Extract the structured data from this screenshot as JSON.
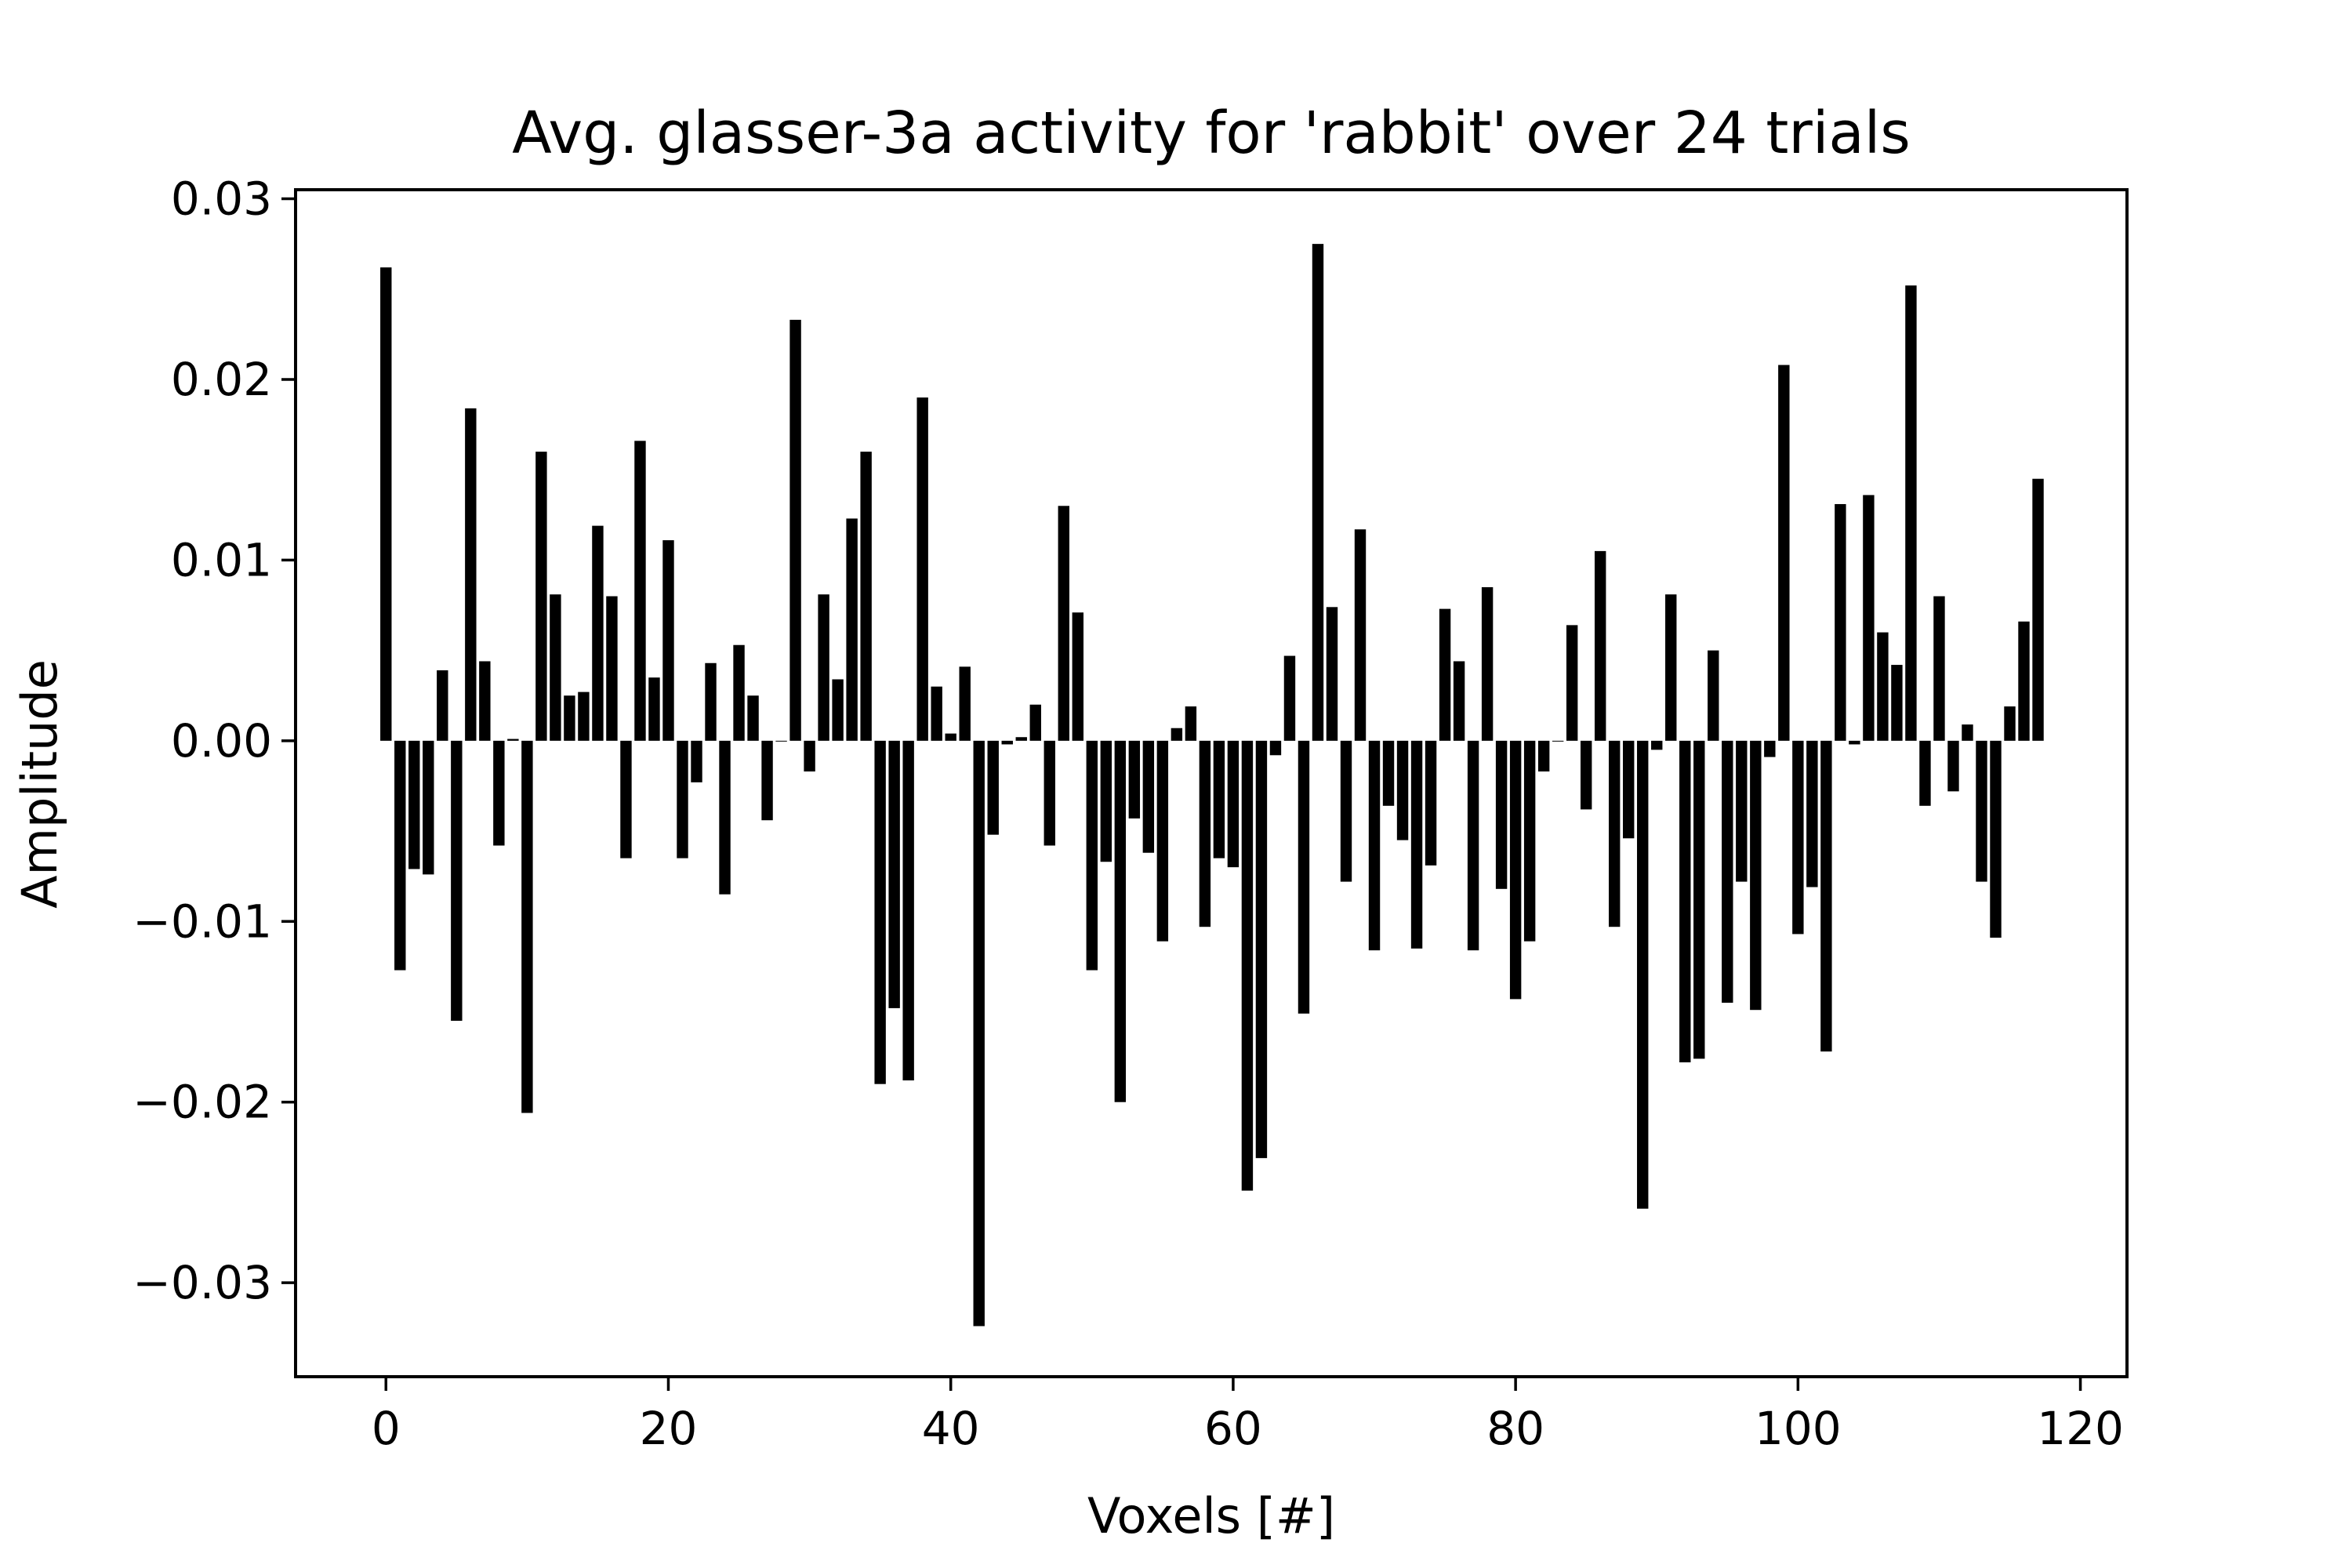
{
  "chart_data": {
    "type": "bar",
    "title": "Avg. glasser-3a activity for 'rabbit' over 24 trials",
    "xlabel": "Voxels [#]",
    "ylabel": "Amplitude",
    "xlim": [
      -6.4,
      123.3
    ],
    "ylim": [
      -0.0352,
      0.0305
    ],
    "xticks": [
      0,
      20,
      40,
      60,
      80,
      100,
      120
    ],
    "xtick_labels": [
      "0",
      "20",
      "40",
      "60",
      "80",
      "100",
      "120"
    ],
    "yticks": [
      -0.03,
      -0.02,
      -0.01,
      0.0,
      0.01,
      0.02,
      0.03
    ],
    "ytick_labels": [
      "−0.03",
      "−0.02",
      "−0.01",
      "0.00",
      "0.01",
      "0.02",
      "0.03"
    ],
    "grid": false,
    "bar_color": "#000000",
    "bar_width": 0.8,
    "x": [
      0,
      1,
      2,
      3,
      4,
      5,
      6,
      7,
      8,
      9,
      10,
      11,
      12,
      13,
      14,
      15,
      16,
      17,
      18,
      19,
      20,
      21,
      22,
      23,
      24,
      25,
      26,
      27,
      28,
      29,
      30,
      31,
      32,
      33,
      34,
      35,
      36,
      37,
      38,
      39,
      40,
      41,
      42,
      43,
      44,
      45,
      46,
      47,
      48,
      49,
      50,
      51,
      52,
      53,
      54,
      55,
      56,
      57,
      58,
      59,
      60,
      61,
      62,
      63,
      64,
      65,
      66,
      67,
      68,
      69,
      70,
      71,
      72,
      73,
      74,
      75,
      76,
      77,
      78,
      79,
      80,
      81,
      82,
      83,
      84,
      85,
      86,
      87,
      88,
      89,
      90,
      91,
      92,
      93,
      94,
      95,
      96,
      97,
      98,
      99,
      100,
      101,
      102,
      103,
      104,
      105,
      106,
      107,
      108,
      109,
      110,
      111,
      112,
      113,
      114,
      115,
      116,
      117
    ],
    "values": [
      0.0262,
      -0.0127,
      -0.0071,
      -0.0074,
      0.0039,
      -0.0155,
      0.0184,
      0.0044,
      -0.0058,
      0.0001,
      -0.0206,
      0.016,
      0.0081,
      0.0025,
      0.0027,
      0.0119,
      0.008,
      -0.0065,
      0.0166,
      0.0035,
      0.0111,
      -0.0065,
      -0.0023,
      0.0043,
      -0.0085,
      0.0053,
      0.0025,
      -0.0044,
      0.0,
      0.0233,
      -0.0017,
      0.0081,
      0.0034,
      0.0123,
      0.016,
      -0.019,
      -0.0148,
      -0.0188,
      0.019,
      0.003,
      0.0004,
      0.0041,
      -0.0324,
      -0.0052,
      -0.0002,
      0.0002,
      0.002,
      -0.0058,
      0.013,
      0.0071,
      -0.0127,
      -0.0067,
      -0.02,
      -0.0043,
      -0.0062,
      -0.0111,
      0.0007,
      0.0019,
      -0.0103,
      -0.0065,
      -0.007,
      -0.0249,
      -0.0231,
      -0.0008,
      0.0047,
      -0.0151,
      0.0275,
      0.0074,
      -0.0078,
      0.0117,
      -0.0116,
      -0.0036,
      -0.0055,
      -0.0115,
      -0.0069,
      0.0073,
      0.0044,
      -0.0116,
      0.0085,
      -0.0082,
      -0.0143,
      -0.0111,
      -0.0017,
      0.0,
      0.0064,
      -0.0038,
      0.0105,
      -0.0103,
      -0.0054,
      -0.0259,
      -0.0005,
      0.0081,
      -0.0178,
      -0.0176,
      0.005,
      -0.0145,
      -0.0078,
      -0.0149,
      -0.0009,
      0.0208,
      -0.0107,
      -0.0081,
      -0.0172,
      0.0131,
      -0.0002,
      0.0136,
      0.006,
      0.0042,
      0.0252,
      -0.0036,
      0.008,
      -0.0028,
      0.0009,
      -0.0078,
      -0.0109,
      0.0019,
      0.0066,
      0.0145
    ]
  }
}
